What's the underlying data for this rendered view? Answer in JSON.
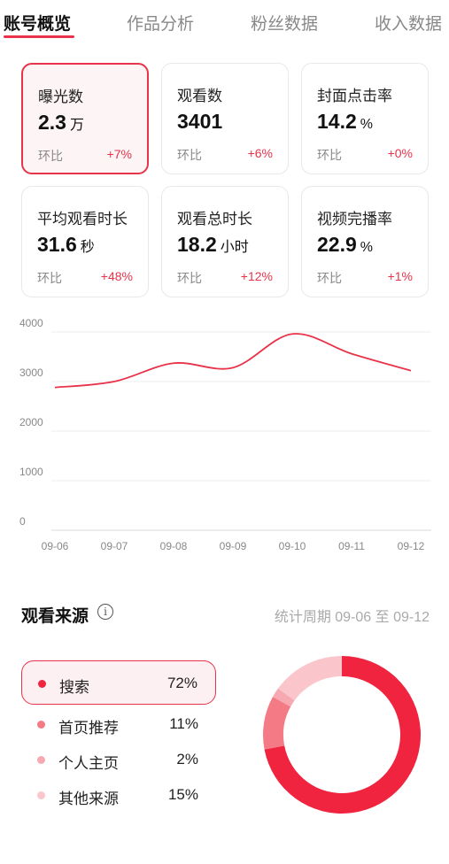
{
  "tabs": [
    {
      "label": "账号概览"
    },
    {
      "label": "作品分析"
    },
    {
      "label": "粉丝数据"
    },
    {
      "label": "收入数据"
    }
  ],
  "cards": [
    {
      "label": "曝光数",
      "value": "2.3",
      "unit": "万",
      "cmp_label": "环比",
      "delta": "+7%"
    },
    {
      "label": "观看数",
      "value": "3401",
      "unit": "",
      "cmp_label": "环比",
      "delta": "+6%"
    },
    {
      "label": "封面点击率",
      "value": "14.2",
      "unit": "%",
      "cmp_label": "环比",
      "delta": "+0%"
    },
    {
      "label": "平均观看时长",
      "value": "31.6",
      "unit": "秒",
      "cmp_label": "环比",
      "delta": "+48%"
    },
    {
      "label": "观看总时长",
      "value": "18.2",
      "unit": "小时",
      "cmp_label": "环比",
      "delta": "+12%"
    },
    {
      "label": "视频完播率",
      "value": "22.9",
      "unit": "%",
      "cmp_label": "环比",
      "delta": "+1%"
    }
  ],
  "chart_data": {
    "type": "line",
    "x": [
      "09-06",
      "09-07",
      "09-08",
      "09-09",
      "09-10",
      "09-11",
      "09-12"
    ],
    "series": [
      {
        "values": [
          2880,
          3000,
          3370,
          3280,
          3960,
          3560,
          3220
        ]
      }
    ],
    "ylim": [
      0,
      4000
    ],
    "yticks": [
      0,
      1000,
      2000,
      3000,
      4000
    ],
    "grid": true,
    "color": "#e8334a"
  },
  "source": {
    "title": "观看来源",
    "info_icon": "info-icon",
    "period": "统计周期 09-06 至 09-12",
    "items": [
      {
        "name": "搜索",
        "pct": "72%",
        "value": 72,
        "color": "#f0243f"
      },
      {
        "name": "首页推荐",
        "pct": "11%",
        "value": 11,
        "color": "#f47a86"
      },
      {
        "name": "个人主页",
        "pct": "2%",
        "value": 2,
        "color": "#f7a9b2"
      },
      {
        "name": "其他来源",
        "pct": "15%",
        "value": 15,
        "color": "#fac6cc"
      }
    ]
  }
}
